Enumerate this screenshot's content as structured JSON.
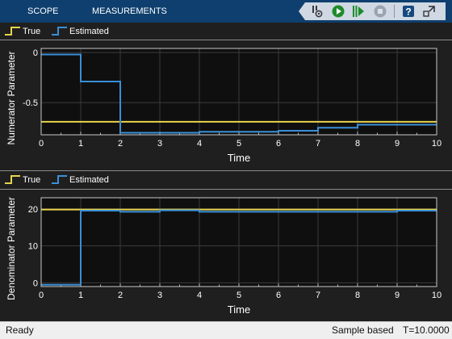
{
  "toolbar": {
    "tabs": [
      "SCOPE",
      "MEASUREMENTS"
    ],
    "buttons": [
      {
        "name": "settings-icon"
      },
      {
        "name": "run-icon"
      },
      {
        "name": "step-forward-icon"
      },
      {
        "name": "stop-icon"
      },
      {
        "name": "help-icon"
      },
      {
        "name": "undock-icon"
      }
    ]
  },
  "colors": {
    "true_series": "#e8d44d",
    "estimated_series": "#3a8fd6",
    "axes_background": "#0f0f0f",
    "figure_background": "#1f1f1f",
    "toolbar_background": "#0e3f6e"
  },
  "legend": {
    "true_label": "True",
    "estimated_label": "Estimated"
  },
  "chart_data": [
    {
      "type": "line",
      "xlabel": "Time",
      "ylabel": "Numerator Parameter",
      "xlim": [
        0,
        10
      ],
      "ylim": [
        -0.82,
        0.04
      ],
      "xticks": [
        0,
        1,
        2,
        3,
        4,
        5,
        6,
        7,
        8,
        9,
        10
      ],
      "yticks": [
        0,
        -0.5
      ],
      "ytick_labels": [
        "0",
        "-0.5"
      ],
      "grid": true,
      "series": [
        {
          "name": "True",
          "x": [
            0,
            10
          ],
          "y": [
            -0.69,
            -0.69
          ]
        },
        {
          "name": "Estimated",
          "step": true,
          "x": [
            0,
            1,
            2,
            4,
            6,
            7,
            8,
            10
          ],
          "y": [
            -0.02,
            -0.29,
            -0.8,
            -0.79,
            -0.78,
            -0.75,
            -0.72,
            -0.72
          ]
        }
      ]
    },
    {
      "type": "line",
      "xlabel": "Time",
      "ylabel": "Denominator Parameter",
      "xlim": [
        0,
        10
      ],
      "ylim": [
        -1,
        23
      ],
      "xticks": [
        0,
        1,
        2,
        3,
        4,
        5,
        6,
        7,
        8,
        9,
        10
      ],
      "yticks": [
        20,
        10,
        0
      ],
      "ytick_labels": [
        "20",
        "10",
        "0"
      ],
      "grid": true,
      "series": [
        {
          "name": "True",
          "x": [
            0,
            10
          ],
          "y": [
            19.8,
            19.8
          ]
        },
        {
          "name": "Estimated",
          "step": true,
          "x": [
            0,
            1,
            2,
            3,
            4,
            9,
            10
          ],
          "y": [
            -0.5,
            19.5,
            19.2,
            19.6,
            19.2,
            19.5,
            19.5
          ]
        }
      ]
    }
  ],
  "status": {
    "left": "Ready",
    "mode": "Sample based",
    "time": "T=10.0000"
  }
}
